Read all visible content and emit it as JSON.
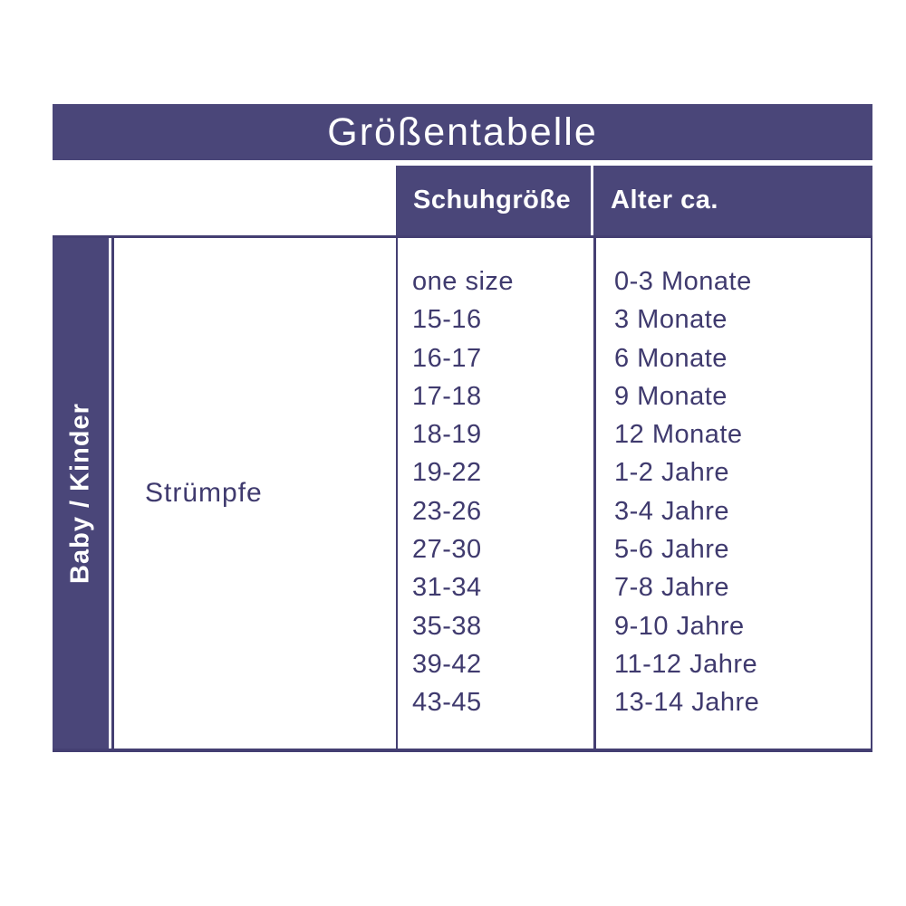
{
  "title": "Größentabelle",
  "header": {
    "size_column": "Schuhgröße",
    "age_column": "Alter ca."
  },
  "category_label": "Baby / Kinder",
  "product_label": "Strümpfe",
  "rows": [
    {
      "size": "one size",
      "age": "0-3 Monate"
    },
    {
      "size": "15-16",
      "age": "3 Monate"
    },
    {
      "size": "16-17",
      "age": "6 Monate"
    },
    {
      "size": "17-18",
      "age": "9 Monate"
    },
    {
      "size": "18-19",
      "age": "12 Monate"
    },
    {
      "size": "19-22",
      "age": "1-2 Jahre"
    },
    {
      "size": "23-26",
      "age": "3-4 Jahre"
    },
    {
      "size": "27-30",
      "age": "5-6 Jahre"
    },
    {
      "size": "31-34",
      "age": "7-8 Jahre"
    },
    {
      "size": "35-38",
      "age": "9-10 Jahre"
    },
    {
      "size": "39-42",
      "age": "11-12 Jahre"
    },
    {
      "size": "43-45",
      "age": "13-14 Jahre"
    }
  ],
  "colors": {
    "primary": "#4a4679",
    "line": "#443f72",
    "text": "#3f3a6e",
    "background": "#ffffff"
  },
  "chart_data": {
    "type": "table",
    "title": "Größentabelle",
    "row_group": "Baby / Kinder",
    "row_label": "Strümpfe",
    "columns": [
      "Schuhgröße",
      "Alter ca."
    ],
    "rows": [
      [
        "one size",
        "0-3 Monate"
      ],
      [
        "15-16",
        "3 Monate"
      ],
      [
        "16-17",
        "6 Monate"
      ],
      [
        "17-18",
        "9 Monate"
      ],
      [
        "18-19",
        "12 Monate"
      ],
      [
        "19-22",
        "1-2 Jahre"
      ],
      [
        "23-26",
        "3-4 Jahre"
      ],
      [
        "27-30",
        "5-6 Jahre"
      ],
      [
        "31-34",
        "7-8 Jahre"
      ],
      [
        "35-38",
        "9-10 Jahre"
      ],
      [
        "39-42",
        "11-12 Jahre"
      ],
      [
        "43-45",
        "13-14 Jahre"
      ]
    ]
  }
}
